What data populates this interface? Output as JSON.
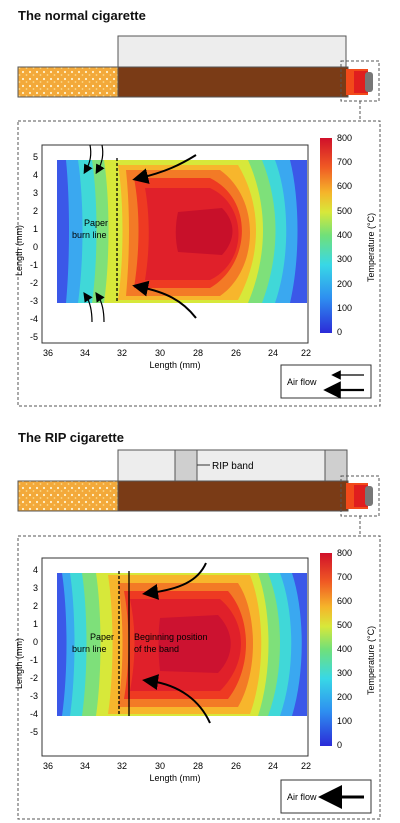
{
  "sections": [
    {
      "title": "The normal cigarette",
      "paper_burn_label": [
        "Paper",
        "burn line"
      ],
      "air_flow_label": "Air flow",
      "band_label": "",
      "band_position_label": []
    },
    {
      "title": "The RIP cigarette",
      "paper_burn_label": [
        "Paper",
        "burn line"
      ],
      "air_flow_label": "Air flow",
      "band_label": "RIP band",
      "band_position_label": [
        "Beginning position",
        "of the band"
      ]
    }
  ],
  "axes": {
    "x_label": "Length (mm)",
    "y_label": "Length (mm)",
    "x_ticks": [
      "36",
      "34",
      "32",
      "30",
      "28",
      "26",
      "24",
      "22"
    ],
    "y_ticks": [
      "5",
      "4",
      "3",
      "2",
      "1",
      "0",
      "-1",
      "-2",
      "-3",
      "-4",
      "-5"
    ]
  },
  "colorbar": {
    "label": "Temperature (°C)",
    "ticks": [
      "800",
      "700",
      "600",
      "500",
      "400",
      "300",
      "200",
      "100",
      "0"
    ]
  },
  "colors": {
    "filter": "#f2a93b",
    "tobacco": "#7a3b16",
    "paper_sleeve": "#e6e6e6",
    "band": "#cfcfcf"
  }
}
